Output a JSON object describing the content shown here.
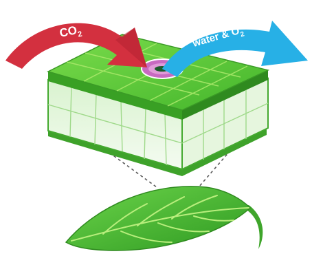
{
  "arrows": {
    "co2": {
      "label": "CO",
      "subscript": "2",
      "color": "#d3303f"
    },
    "water_o2": {
      "label": "water & O",
      "subscript": "2",
      "color": "#27b0e6"
    }
  },
  "colors": {
    "leaf_top": "#5cc940",
    "leaf_dark": "#2f8a1f",
    "leaf_mid": "#42ad2c",
    "vein": "#a9e86a",
    "tissue": "#e9f8e3",
    "stoma_ring": "#c86ac1",
    "stoma_pore": "#1c5b2b",
    "guide_lines": "#5a5a5a"
  },
  "icons": {
    "leaf": "leaf-icon",
    "cross_section": "leaf-cross-section-icon",
    "stoma": "stoma-icon"
  }
}
